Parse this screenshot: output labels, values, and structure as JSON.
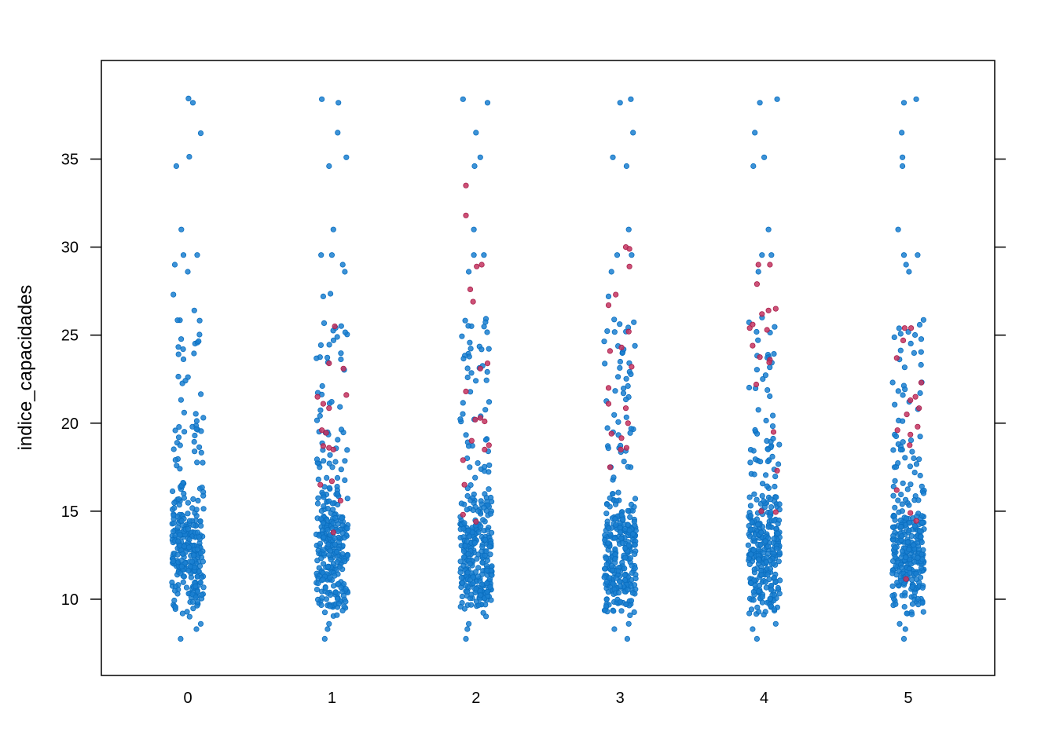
{
  "chart_data": {
    "type": "scatter",
    "title": "",
    "xlabel": "",
    "ylabel": "indice_capacidades",
    "xlim": [
      -0.6,
      5.6
    ],
    "ylim": [
      5.67,
      40.6
    ],
    "x_ticks": [
      "0",
      "1",
      "2",
      "3",
      "4",
      "5"
    ],
    "y_ticks": [
      "10",
      "15",
      "20",
      "25",
      "30",
      "35"
    ],
    "grid": false,
    "legend": "none",
    "colors": {
      "blue": "#1a7fd0",
      "blue_edge": "#0b6fc0",
      "red": "#c4325f",
      "red_edge": "#a8204c"
    },
    "explicit_points": {
      "blue": [
        [
          0.005,
          38.44
        ],
        [
          0.035,
          38.2
        ],
        [
          0.09,
          36.47
        ],
        [
          0.01,
          35.13
        ],
        [
          -0.08,
          34.6
        ],
        [
          -0.045,
          31.0
        ],
        [
          -0.09,
          29.0
        ],
        [
          -0.03,
          29.55
        ],
        [
          0.065,
          29.55
        ],
        [
          0,
          28.6
        ],
        [
          -0.1,
          27.3
        ],
        [
          0.045,
          26.4
        ],
        [
          -0.05,
          7.75
        ],
        [
          0.06,
          8.3
        ],
        [
          0.09,
          8.6
        ],
        [
          0.93,
          38.4
        ],
        [
          1.045,
          38.2
        ],
        [
          1.04,
          36.5
        ],
        [
          1.1,
          35.1
        ],
        [
          0.98,
          34.6
        ],
        [
          1.01,
          31.0
        ],
        [
          0.925,
          29.55
        ],
        [
          1.0,
          29.55
        ],
        [
          1.075,
          29.0
        ],
        [
          1.09,
          28.6
        ],
        [
          0.99,
          27.35
        ],
        [
          0.94,
          27.2
        ],
        [
          0.95,
          7.75
        ],
        [
          0.97,
          8.3
        ],
        [
          0.98,
          8.6
        ],
        [
          1.91,
          38.4
        ],
        [
          2.08,
          38.2
        ],
        [
          2.0,
          36.5
        ],
        [
          2.03,
          35.1
        ],
        [
          1.99,
          34.6
        ],
        [
          1.985,
          31.0
        ],
        [
          1.985,
          29.55
        ],
        [
          2.055,
          29.55
        ],
        [
          1.95,
          28.6
        ],
        [
          1.93,
          7.75
        ],
        [
          1.94,
          8.3
        ],
        [
          1.95,
          8.6
        ],
        [
          3.075,
          38.4
        ],
        [
          3.0,
          38.2
        ],
        [
          3.09,
          36.5
        ],
        [
          2.95,
          35.1
        ],
        [
          3.045,
          34.6
        ],
        [
          3.06,
          31.0
        ],
        [
          2.98,
          29.55
        ],
        [
          3.08,
          29.55
        ],
        [
          2.94,
          28.6
        ],
        [
          2.92,
          27.2
        ],
        [
          3.05,
          7.75
        ],
        [
          2.96,
          8.3
        ],
        [
          3.06,
          8.6
        ],
        [
          4.09,
          38.4
        ],
        [
          3.97,
          38.2
        ],
        [
          3.935,
          36.5
        ],
        [
          4.0,
          35.1
        ],
        [
          3.925,
          34.6
        ],
        [
          4.03,
          31.0
        ],
        [
          3.985,
          29.55
        ],
        [
          4.05,
          29.55
        ],
        [
          3.96,
          28.6
        ],
        [
          3.95,
          7.75
        ],
        [
          3.92,
          8.3
        ],
        [
          4.08,
          8.6
        ],
        [
          5.055,
          38.4
        ],
        [
          4.97,
          38.2
        ],
        [
          4.955,
          36.5
        ],
        [
          4.96,
          35.1
        ],
        [
          4.96,
          34.6
        ],
        [
          4.93,
          31.0
        ],
        [
          4.97,
          29.55
        ],
        [
          5.065,
          29.55
        ],
        [
          4.985,
          29.0
        ],
        [
          5.005,
          28.6
        ],
        [
          4.97,
          7.75
        ],
        [
          4.98,
          8.3
        ],
        [
          4.94,
          8.6
        ]
      ],
      "red": [
        [
          1.02,
          25.5
        ],
        [
          1.08,
          23.1
        ],
        [
          0.98,
          23.4
        ],
        [
          0.9,
          21.5
        ],
        [
          0.94,
          21.1
        ],
        [
          0.98,
          20.85
        ],
        [
          1.1,
          21.6
        ],
        [
          0.93,
          19.6
        ],
        [
          0.96,
          19.45
        ],
        [
          0.94,
          18.7
        ],
        [
          0.98,
          18.6
        ],
        [
          1.01,
          18.5
        ],
        [
          0.92,
          16.5
        ],
        [
          1.0,
          16.7
        ],
        [
          1.06,
          15.6
        ],
        [
          1.01,
          13.8
        ],
        [
          1.93,
          33.5
        ],
        [
          1.93,
          31.8
        ],
        [
          2.005,
          28.9
        ],
        [
          2.04,
          29.0
        ],
        [
          1.96,
          27.6
        ],
        [
          1.98,
          26.9
        ],
        [
          2.08,
          23.4
        ],
        [
          2.03,
          23.1
        ],
        [
          1.93,
          21.8
        ],
        [
          1.995,
          20.2
        ],
        [
          2.03,
          20.3
        ],
        [
          2.06,
          20.1
        ],
        [
          1.97,
          19.0
        ],
        [
          2.09,
          18.75
        ],
        [
          2.06,
          18.5
        ],
        [
          1.91,
          17.9
        ],
        [
          1.92,
          16.5
        ],
        [
          1.91,
          14.8
        ],
        [
          2.0,
          14.4
        ],
        [
          3.04,
          30.0
        ],
        [
          3.065,
          29.9
        ],
        [
          3.065,
          28.9
        ],
        [
          2.97,
          27.3
        ],
        [
          2.92,
          26.7
        ],
        [
          3.06,
          25.2
        ],
        [
          2.93,
          24.1
        ],
        [
          3.01,
          24.3
        ],
        [
          3.08,
          23.2
        ],
        [
          2.92,
          22.0
        ],
        [
          2.92,
          21.1
        ],
        [
          3.04,
          20.85
        ],
        [
          3.055,
          20.0
        ],
        [
          2.94,
          19.4
        ],
        [
          3.01,
          19.15
        ],
        [
          3.005,
          18.5
        ],
        [
          3.045,
          18.6
        ],
        [
          2.93,
          17.5
        ],
        [
          3.96,
          29.0
        ],
        [
          4.04,
          29.0
        ],
        [
          3.95,
          27.9
        ],
        [
          4.03,
          26.4
        ],
        [
          4.08,
          26.5
        ],
        [
          3.985,
          26.2
        ],
        [
          3.92,
          25.6
        ],
        [
          3.9,
          25.4
        ],
        [
          4.02,
          25.3
        ],
        [
          3.92,
          24.4
        ],
        [
          3.97,
          23.75
        ],
        [
          4.04,
          23.6
        ],
        [
          4.035,
          23.45
        ],
        [
          3.945,
          22.2
        ],
        [
          4.065,
          19.5
        ],
        [
          4.09,
          17.3
        ],
        [
          3.98,
          15.0
        ],
        [
          4.08,
          14.95
        ],
        [
          4.975,
          25.4
        ],
        [
          5.02,
          25.4
        ],
        [
          4.965,
          24.7
        ],
        [
          4.92,
          23.7
        ],
        [
          5.09,
          22.3
        ],
        [
          5.015,
          21.3
        ],
        [
          5.05,
          21.5
        ],
        [
          5.075,
          20.85
        ],
        [
          4.99,
          20.5
        ],
        [
          4.925,
          19.6
        ],
        [
          5.065,
          19.8
        ],
        [
          5.015,
          19.35
        ],
        [
          5.01,
          18.75
        ],
        [
          4.92,
          16.2
        ],
        [
          5.015,
          14.9
        ],
        [
          5.055,
          14.45
        ],
        [
          4.985,
          11.15
        ]
      ]
    },
    "generated_points": {
      "groups": [
        0,
        1,
        2,
        3,
        4,
        5
      ],
      "seeds": [
        11,
        23,
        37,
        41,
        59,
        67
      ],
      "jitter": 0.11,
      "n_dense": 270,
      "dense_range": [
        9.0,
        17.5
      ],
      "n_mid": 45,
      "mid_range": [
        17.5,
        26.0
      ]
    }
  }
}
